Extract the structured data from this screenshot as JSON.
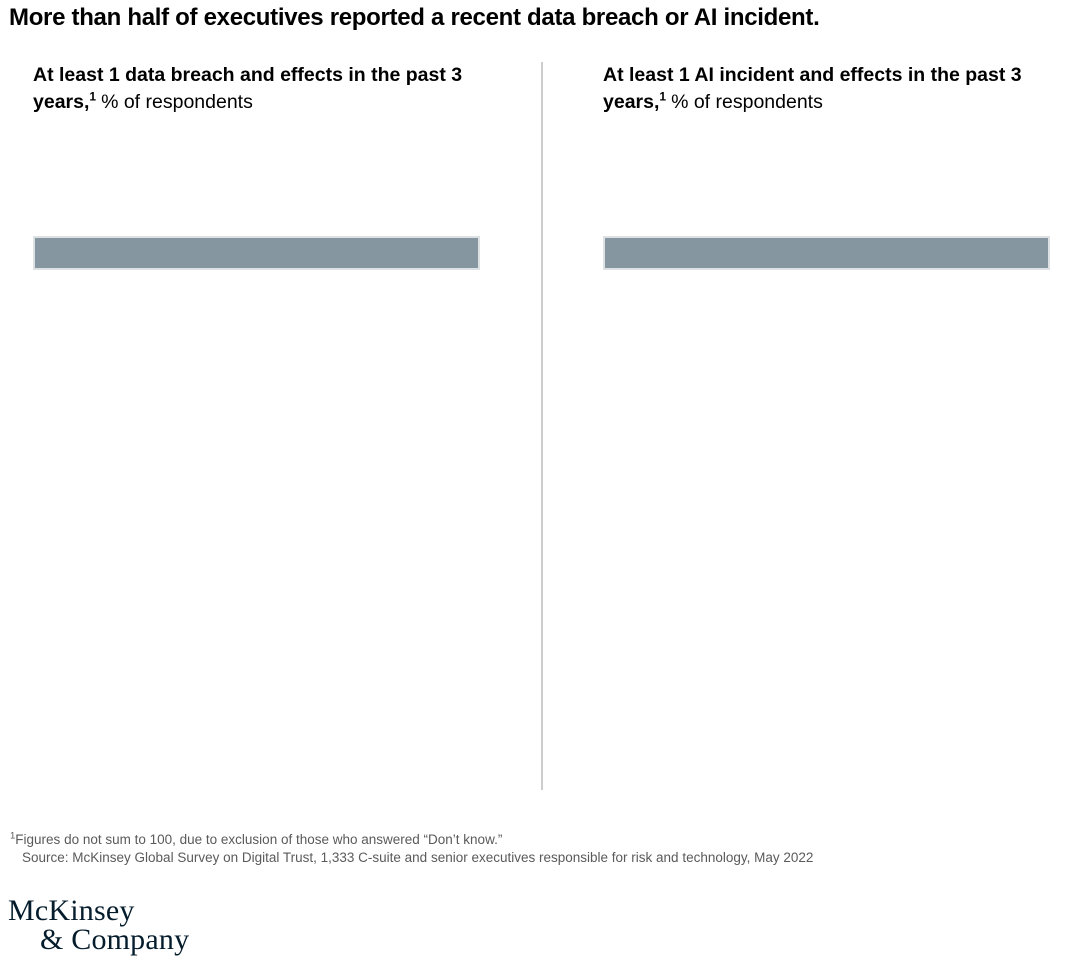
{
  "title": "More than half of executives reported a recent data breach or AI incident.",
  "panels": [
    {
      "heading_bold": "At least 1 data breach and effects in the past 3 years,",
      "footnote_marker": "1",
      "heading_unit": "% of respondents"
    },
    {
      "heading_bold": "At least 1 AI incident and effects in the past 3 years,",
      "footnote_marker": "1",
      "heading_unit": "% of respondents"
    }
  ],
  "chart_data": {
    "type": "bar",
    "orientation": "horizontal",
    "value_labels_visible": false,
    "categories": [
      "At least 1 data breach and effects in the past 3 years",
      "At least 1 AI incident and effects in the past 3 years"
    ],
    "unit": "% of respondents",
    "series": [
      {
        "name": "At least 1 data breach and effects in the past 3 years",
        "bar_fill_pct": 100
      },
      {
        "name": "At least 1 AI incident and effects in the past 3 years",
        "bar_fill_pct": 100
      }
    ],
    "bar_color": "#8596A0",
    "legend": "none",
    "axes_visible": false
  },
  "footnotes": [
    {
      "marker": "1",
      "text": "Figures do not sum to 100, due to exclusion of those who answered “Don’t know.”"
    },
    {
      "marker": "",
      "text": "Source: McKinsey Global Survey on Digital Trust, 1,333 C-suite and senior executives responsible for risk and technology, May 2022"
    }
  ],
  "logo": {
    "line1": "McKinsey",
    "line2": "& Company",
    "color": "#051C2C"
  },
  "colors": {
    "bar": "#8596A0",
    "bar_halo": "#dde1e4",
    "divider": "#cdcdcd",
    "footnote_text": "#5a5a5a",
    "title_text": "#000000"
  }
}
